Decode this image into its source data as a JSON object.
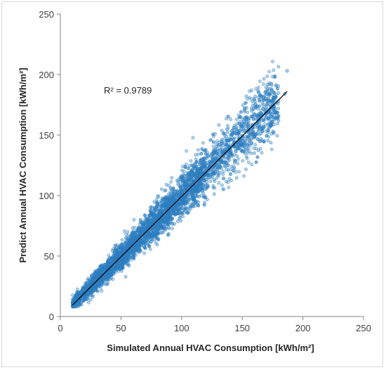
{
  "chart_data": {
    "type": "scatter",
    "title": "",
    "xlabel": "Simulated Annual HVAC Consumption [kWh/m²]",
    "ylabel": "Predict Annual HVAC Consumption [kWh/m²]",
    "xlim": [
      0,
      250
    ],
    "ylim": [
      0,
      250
    ],
    "xticks": [
      0,
      50,
      100,
      150,
      200,
      250
    ],
    "yticks": [
      0,
      50,
      100,
      150,
      200,
      250
    ],
    "annotation": "R² = 0.9789",
    "grid": false,
    "legend": "none",
    "point_color": "#2e7fc1",
    "trendline_color": "#000000",
    "series": [
      {
        "points_description_sampled": true,
        "x": [
          10,
          12,
          15,
          18,
          20,
          22,
          25,
          28,
          30,
          33,
          35,
          38,
          40,
          43,
          45,
          48,
          50,
          53,
          55,
          58,
          60,
          63,
          65,
          68,
          70,
          73,
          75,
          78,
          80,
          83,
          85,
          88,
          90,
          93,
          95,
          98,
          100,
          103,
          105,
          108,
          110,
          113,
          115,
          118,
          120,
          123,
          125,
          128,
          130,
          133,
          135,
          138,
          140,
          143,
          145,
          148,
          150,
          155,
          160,
          165,
          170,
          175,
          180,
          185,
          187
        ],
        "y": [
          9,
          11,
          14,
          17,
          19,
          21,
          24,
          27,
          29,
          32,
          34,
          37,
          39,
          42,
          44,
          47,
          49,
          52,
          54,
          57,
          59,
          62,
          64,
          67,
          69,
          72,
          74,
          77,
          79,
          82,
          84,
          87,
          89,
          92,
          94,
          97,
          99,
          102,
          104,
          107,
          109,
          112,
          114,
          117,
          119,
          122,
          124,
          127,
          129,
          132,
          134,
          137,
          139,
          142,
          144,
          147,
          149,
          154,
          159,
          164,
          169,
          174,
          178,
          184,
          203
        ]
      }
    ],
    "trendline": {
      "x": [
        10,
        187
      ],
      "y": [
        9.5,
        186
      ]
    }
  }
}
